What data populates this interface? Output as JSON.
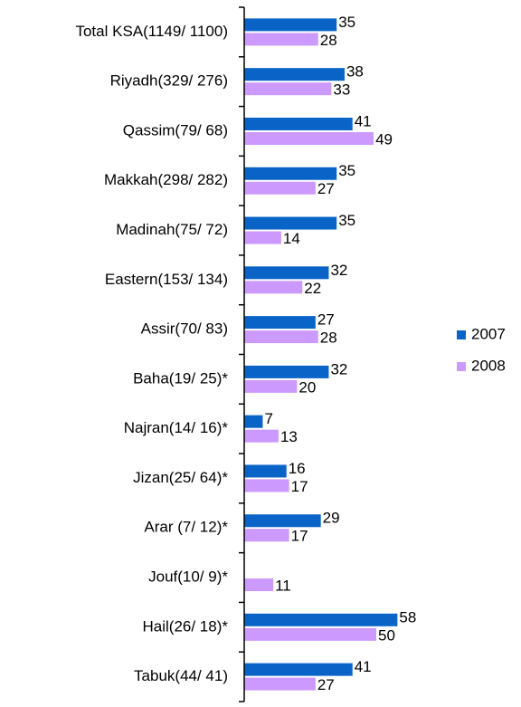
{
  "chart_data": {
    "type": "hbar",
    "categories": [
      "Total KSA(1149/ 1100)",
      "Riyadh(329/ 276)",
      "Qassim(79/ 68)",
      "Makkah(298/ 282)",
      "Madinah(75/ 72)",
      "Eastern(153/ 134)",
      "Assir(70/ 83)",
      "Baha(19/ 25)*",
      "Najran(14/ 16)*",
      "Jizan(25/ 64)*",
      "Arar (7/ 12)*",
      "Jouf(10/ 9)*",
      "Hail(26/ 18)*",
      "Tabuk(44/ 41)"
    ],
    "series": [
      {
        "name": "2007",
        "color": "#0a64c8",
        "values": [
          35,
          38,
          41,
          35,
          35,
          32,
          27,
          32,
          7,
          16,
          29,
          null,
          58,
          41
        ]
      },
      {
        "name": "2008",
        "color": "#cc99ff",
        "values": [
          28,
          33,
          49,
          27,
          14,
          22,
          28,
          20,
          13,
          17,
          17,
          11,
          50,
          27
        ]
      }
    ],
    "xlim": [
      0,
      100
    ],
    "legend": "right"
  }
}
